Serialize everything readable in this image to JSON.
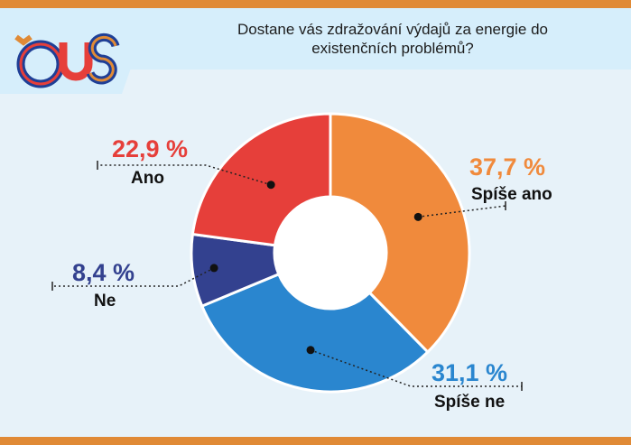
{
  "title": "Dostane vás zdražování výdajů za energie do existenčních problémů?",
  "logo": {
    "text": "ČUS"
  },
  "colors": {
    "orange": "#f08a3c",
    "blue": "#2a86cf",
    "navy": "#33418f",
    "red": "#e63f3a",
    "accent": "#e08a36"
  },
  "chart_data": {
    "type": "pie",
    "title": "Dostane vás zdražování výdajů za energie do existenčních problémů?",
    "slices": [
      {
        "label": "Spíše ano",
        "value": 37.7,
        "value_label": "37,7 %",
        "color": "#f08a3c"
      },
      {
        "label": "Spíše ne",
        "value": 31.1,
        "value_label": "31,1 %",
        "color": "#2a86cf"
      },
      {
        "label": "Ne",
        "value": 8.4,
        "value_label": "8,4 %",
        "color": "#33418f"
      },
      {
        "label": "Ano",
        "value": 22.9,
        "value_label": "22,9 %",
        "color": "#e63f3a"
      }
    ]
  }
}
